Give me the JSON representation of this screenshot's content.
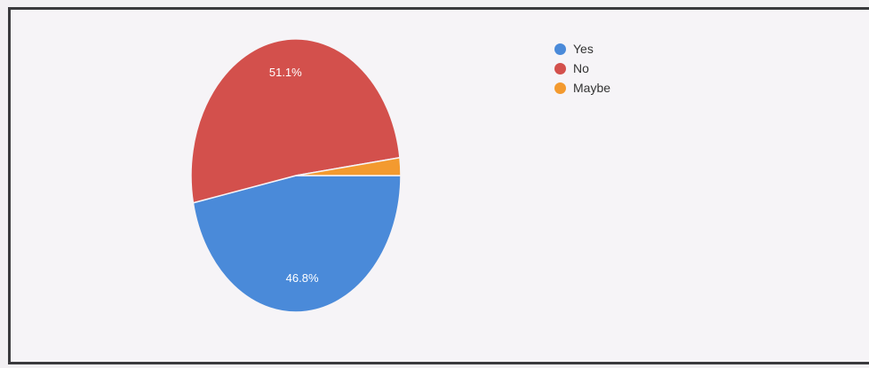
{
  "chart_data": {
    "type": "pie",
    "title": "",
    "categories": [
      "Yes",
      "No",
      "Maybe"
    ],
    "values": [
      46.8,
      51.1,
      2.1
    ],
    "data_labels": [
      "46.8%",
      "51.1%",
      ""
    ],
    "colors": [
      "#4a8ad9",
      "#d3504c",
      "#f39a2f"
    ],
    "legend_position": "top-right"
  }
}
